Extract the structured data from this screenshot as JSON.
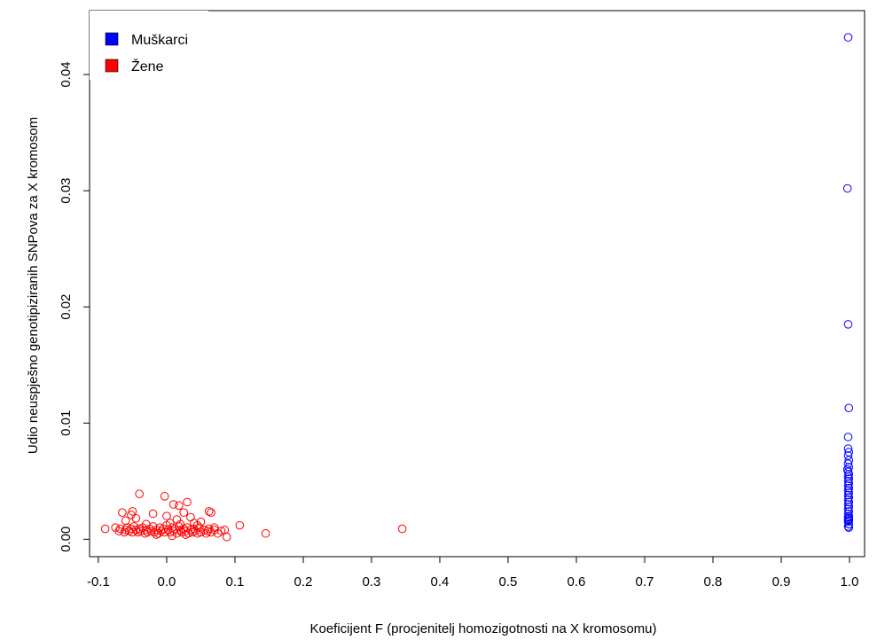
{
  "chart_data": {
    "type": "scatter",
    "title": "",
    "xlabel": "Koeficijent F (procjenitelj homozigotnosti na X kromosomu)",
    "ylabel": "Udio neuspješno genotipiziranih SNPova za X kromosom",
    "xlim": [
      -0.135,
      1.0
    ],
    "ylim": [
      -0.0015,
      0.0455
    ],
    "x_ticks": [
      -0.1,
      0.0,
      0.1,
      0.2,
      0.3,
      0.4,
      0.5,
      0.6,
      0.7,
      0.8,
      0.9,
      1.0
    ],
    "x_tick_labels": [
      "-0.1",
      "0.0",
      "0.1",
      "0.2",
      "0.3",
      "0.4",
      "0.5",
      "0.6",
      "0.7",
      "0.8",
      "0.9",
      "1.0"
    ],
    "y_ticks": [
      0.0,
      0.01,
      0.02,
      0.03,
      0.04
    ],
    "y_tick_labels": [
      "0.00",
      "0.01",
      "0.02",
      "0.03",
      "0.04"
    ],
    "grid": false,
    "legend_position": "top-left",
    "series": [
      {
        "name": "Muškarci",
        "color": "#0000ff",
        "marker": "open-circle",
        "x": [
          0.998,
          0.997,
          0.998,
          0.999,
          0.998,
          0.998,
          0.999,
          0.998,
          0.999,
          0.998,
          0.999,
          0.997,
          0.998,
          0.999,
          0.998,
          0.999,
          0.998,
          0.999,
          0.998,
          0.999,
          0.998,
          0.999,
          0.998,
          0.999,
          0.998,
          0.999,
          0.998,
          0.999,
          0.998,
          0.999,
          0.998,
          0.999,
          0.998,
          0.999,
          0.998,
          0.999,
          0.998,
          0.999,
          0.998,
          0.999
        ],
        "y": [
          0.0432,
          0.0302,
          0.0185,
          0.0113,
          0.0088,
          0.0078,
          0.0075,
          0.0072,
          0.0068,
          0.0065,
          0.0062,
          0.006,
          0.0058,
          0.0056,
          0.0054,
          0.0052,
          0.005,
          0.0048,
          0.0046,
          0.0044,
          0.0042,
          0.004,
          0.0038,
          0.0036,
          0.0034,
          0.0032,
          0.003,
          0.0028,
          0.0026,
          0.0024,
          0.0022,
          0.002,
          0.0019,
          0.0018,
          0.0017,
          0.0016,
          0.0015,
          0.0013,
          0.0011,
          0.001
        ]
      },
      {
        "name": "Žene",
        "color": "#ff0000",
        "marker": "open-circle",
        "x": [
          -0.09,
          -0.075,
          -0.07,
          -0.068,
          -0.062,
          -0.06,
          -0.058,
          -0.055,
          -0.052,
          -0.05,
          -0.048,
          -0.045,
          -0.042,
          -0.04,
          -0.038,
          -0.035,
          -0.032,
          -0.03,
          -0.028,
          -0.025,
          -0.022,
          -0.02,
          -0.018,
          -0.015,
          -0.012,
          -0.01,
          -0.008,
          -0.005,
          -0.003,
          0.0,
          0.002,
          0.005,
          0.008,
          0.01,
          0.012,
          0.015,
          0.018,
          0.02,
          0.022,
          0.025,
          0.028,
          0.03,
          0.032,
          0.035,
          0.038,
          0.04,
          0.042,
          0.045,
          0.048,
          0.05,
          0.055,
          0.058,
          0.06,
          0.062,
          0.065,
          0.07,
          0.075,
          0.08,
          0.085,
          0.088,
          -0.04,
          -0.052,
          -0.05,
          -0.003,
          0.01,
          0.018,
          0.03,
          0.025,
          0.062,
          0.065,
          -0.065,
          -0.045,
          -0.02,
          0.0,
          0.015,
          0.035,
          0.04,
          0.05,
          0.107,
          0.145,
          0.345,
          -0.06,
          -0.03,
          0.005,
          0.02,
          0.045,
          -0.015,
          0.008,
          0.028,
          0.07
        ],
        "y": [
          0.0009,
          0.001,
          0.0007,
          0.0009,
          0.0006,
          0.0008,
          0.001,
          0.0007,
          0.0009,
          0.0006,
          0.0011,
          0.0008,
          0.0006,
          0.0009,
          0.0007,
          0.001,
          0.0005,
          0.0008,
          0.0006,
          0.0009,
          0.0007,
          0.0011,
          0.0006,
          0.0008,
          0.0005,
          0.001,
          0.0007,
          0.0009,
          0.0006,
          0.0012,
          0.0008,
          0.0006,
          0.001,
          0.0007,
          0.0009,
          0.0005,
          0.0011,
          0.0008,
          0.0006,
          0.0009,
          0.0007,
          0.001,
          0.0005,
          0.0008,
          0.0006,
          0.0009,
          0.0007,
          0.0005,
          0.001,
          0.0006,
          0.0008,
          0.0005,
          0.0007,
          0.0009,
          0.0006,
          0.0008,
          0.0005,
          0.0007,
          0.0008,
          0.0002,
          0.0039,
          0.0021,
          0.0024,
          0.0037,
          0.003,
          0.0029,
          0.0032,
          0.0023,
          0.0024,
          0.0023,
          0.0023,
          0.0018,
          0.0022,
          0.002,
          0.0017,
          0.0019,
          0.0014,
          0.0015,
          0.0012,
          0.0005,
          0.0009,
          0.0016,
          0.0013,
          0.0014,
          0.0013,
          0.0012,
          0.0004,
          0.0003,
          0.0004,
          0.001
        ]
      }
    ]
  }
}
